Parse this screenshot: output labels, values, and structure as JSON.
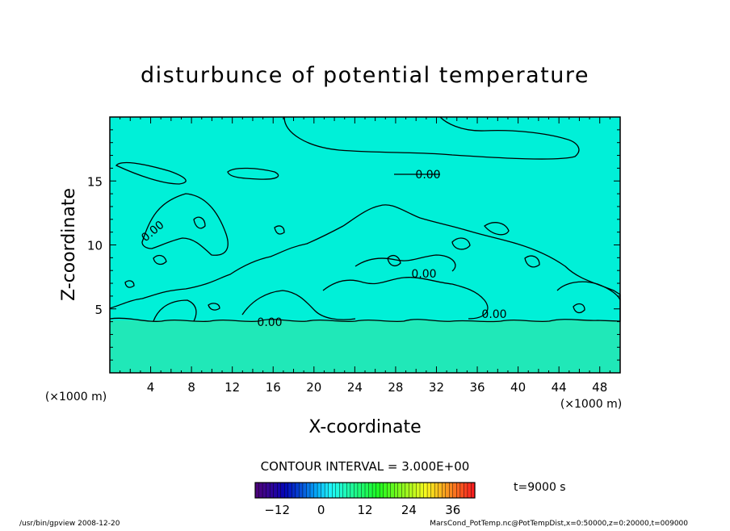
{
  "chart_data": {
    "type": "heatmap",
    "title": "disturbunce of potential temperature",
    "xlabel": "X-coordinate",
    "ylabel": "Z-coordinate",
    "x_unit": "(×1000 m)",
    "x_unit_right": "(×1000 m)",
    "xlim": [
      0,
      50
    ],
    "ylim": [
      0,
      20
    ],
    "x_ticks": [
      4,
      8,
      12,
      16,
      20,
      24,
      28,
      32,
      36,
      40,
      44,
      48
    ],
    "y_ticks": [
      5,
      10,
      15
    ],
    "contour_interval": "CONTOUR INTERVAL = 3.000E+00",
    "contour_labels": [
      "0.00",
      "0.00",
      "0.00",
      "0.00",
      "0.00"
    ],
    "colorbar": {
      "range": [
        -18,
        42
      ],
      "ticks": [
        -12,
        0,
        12,
        24,
        36
      ],
      "tick_labels": [
        "−12",
        "0",
        "12",
        "24",
        "36"
      ]
    },
    "time_label": "t=9000 s",
    "footer_left": "/usr/bin/gpview  2008-12-20",
    "footer_right": "MarsCond_PotTemp.nc@PotTempDist,x=0:50000,z=0:20000,t=009000",
    "field_colors": {
      "background_upper": "#00f0d8",
      "lower_layer": "#20e8b8",
      "contour": "#000000"
    }
  }
}
